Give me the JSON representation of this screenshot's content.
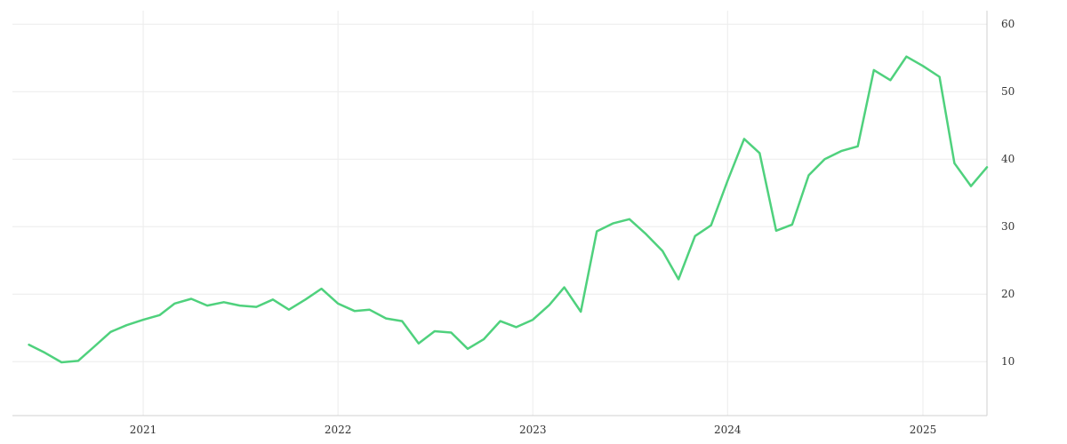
{
  "chart_data": {
    "type": "line",
    "title": "",
    "xlabel": "",
    "ylabel": "",
    "grid": true,
    "legend": "none",
    "xlim": [
      "2020-05-01",
      "2025-05-01"
    ],
    "ylim": [
      2,
      62
    ],
    "x_ticks": [
      "2021",
      "2022",
      "2023",
      "2024",
      "2025"
    ],
    "y_ticks": [
      10,
      20,
      30,
      40,
      50,
      60
    ],
    "y_axis_side": "right",
    "series": [
      {
        "color": "#4fd17d",
        "x": [
          "2020-06-01",
          "2020-07-01",
          "2020-08-01",
          "2020-09-01",
          "2020-10-01",
          "2020-11-01",
          "2020-12-01",
          "2021-01-01",
          "2021-02-01",
          "2021-03-01",
          "2021-04-01",
          "2021-05-01",
          "2021-06-01",
          "2021-07-01",
          "2021-08-01",
          "2021-09-01",
          "2021-10-01",
          "2021-11-01",
          "2021-12-01",
          "2022-01-01",
          "2022-02-01",
          "2022-03-01",
          "2022-04-01",
          "2022-05-01",
          "2022-06-01",
          "2022-07-01",
          "2022-08-01",
          "2022-09-01",
          "2022-10-01",
          "2022-11-01",
          "2022-12-01",
          "2023-01-01",
          "2023-02-01",
          "2023-03-01",
          "2023-04-01",
          "2023-05-01",
          "2023-06-01",
          "2023-07-01",
          "2023-08-01",
          "2023-09-01",
          "2023-10-01",
          "2023-11-01",
          "2023-12-01",
          "2024-01-01",
          "2024-02-01",
          "2024-03-01",
          "2024-04-01",
          "2024-05-01",
          "2024-06-01",
          "2024-07-01",
          "2024-08-01",
          "2024-09-01",
          "2024-10-01",
          "2024-11-01",
          "2024-12-01",
          "2025-01-01",
          "2025-02-01",
          "2025-03-01",
          "2025-04-01",
          "2025-05-01"
        ],
        "y": [
          12.5,
          11.3,
          9.9,
          10.1,
          12.2,
          14.4,
          15.4,
          16.2,
          16.9,
          18.6,
          19.3,
          18.3,
          18.8,
          18.3,
          18.1,
          19.2,
          17.7,
          19.2,
          20.8,
          18.6,
          17.5,
          17.7,
          16.4,
          16.0,
          12.7,
          14.5,
          14.3,
          11.9,
          13.3,
          16.0,
          15.1,
          16.2,
          18.4,
          21.0,
          17.4,
          29.3,
          30.5,
          31.1,
          28.9,
          26.4,
          22.2,
          28.6,
          30.2,
          36.8,
          43.0,
          40.9,
          29.4,
          30.3,
          37.6,
          40.0,
          41.2,
          41.9,
          53.2,
          51.7,
          55.2,
          53.8,
          52.2,
          39.4,
          36.0,
          38.8
        ]
      }
    ]
  }
}
